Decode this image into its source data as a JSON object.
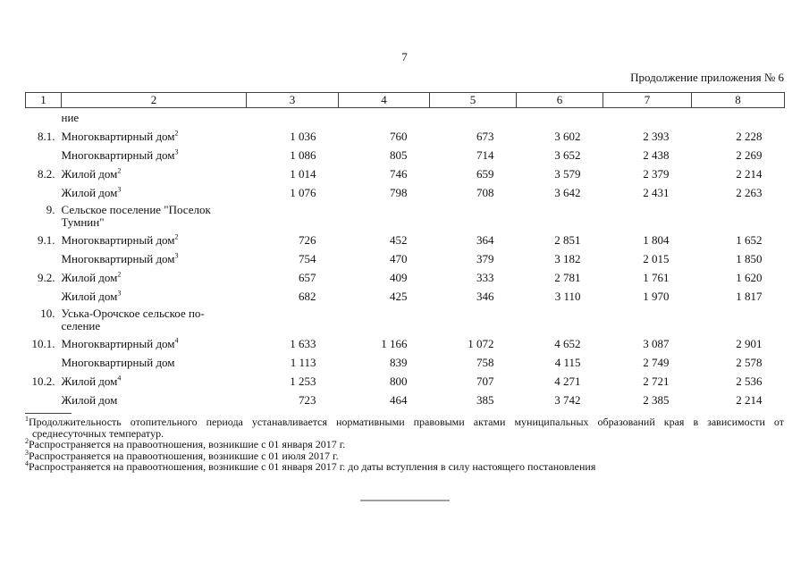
{
  "page": {
    "number": "7",
    "continuation_note": "Продолжение приложения № 6"
  },
  "table": {
    "header_cells": [
      "1",
      "2",
      "3",
      "4",
      "5",
      "6",
      "7",
      "8"
    ],
    "rows": [
      {
        "num": "",
        "label": "ние",
        "type": "continuation",
        "values": [
          "",
          "",
          "",
          "",
          "",
          ""
        ]
      },
      {
        "num": "8.1.",
        "label": "Многоквартирный дом",
        "sup": "2",
        "values": [
          "1 036",
          "760",
          "673",
          "3 602",
          "2 393",
          "2 228"
        ]
      },
      {
        "num": "",
        "label": "Многоквартирный дом",
        "sup": "3",
        "values": [
          "1 086",
          "805",
          "714",
          "3 652",
          "2 438",
          "2 269"
        ]
      },
      {
        "num": "8.2.",
        "label": "Жилой дом",
        "sup": "2",
        "values": [
          "1 014",
          "746",
          "659",
          "3 579",
          "2 379",
          "2 214"
        ]
      },
      {
        "num": "",
        "label": "Жилой дом",
        "sup": "3",
        "values": [
          "1 076",
          "798",
          "708",
          "3 642",
          "2 431",
          "2 263"
        ]
      },
      {
        "num": "9.",
        "label_lines": [
          "Сельское поселение \"Поселок",
          "Тумнин\""
        ],
        "type": "section",
        "values": [
          "",
          "",
          "",
          "",
          "",
          ""
        ]
      },
      {
        "num": "9.1.",
        "label": "Многоквартирный дом",
        "sup": "2",
        "values": [
          "726",
          "452",
          "364",
          "2 851",
          "1 804",
          "1 652"
        ]
      },
      {
        "num": "",
        "label": "Многоквартирный дом",
        "sup": "3",
        "values": [
          "754",
          "470",
          "379",
          "3 182",
          "2 015",
          "1 850"
        ]
      },
      {
        "num": "9.2.",
        "label": "Жилой дом",
        "sup": "2",
        "values": [
          "657",
          "409",
          "333",
          "2 781",
          "1 761",
          "1 620"
        ]
      },
      {
        "num": "",
        "label": "Жилой дом",
        "sup": "3",
        "values": [
          "682",
          "425",
          "346",
          "3 110",
          "1 970",
          "1 817"
        ]
      },
      {
        "num": "10.",
        "label_lines": [
          "Уська-Орочское сельское по-",
          "селение"
        ],
        "type": "section",
        "values": [
          "",
          "",
          "",
          "",
          "",
          ""
        ]
      },
      {
        "num": "10.1.",
        "label": "Многоквартирный дом",
        "sup": "4",
        "values": [
          "1 633",
          "1 166",
          "1 072",
          "4 652",
          "3 087",
          "2 901"
        ]
      },
      {
        "num": "",
        "label": "Многоквартирный дом",
        "values": [
          "1 113",
          "839",
          "758",
          "4 115",
          "2 749",
          "2 578"
        ]
      },
      {
        "num": "10.2.",
        "label": "Жилой дом",
        "sup": "4",
        "values": [
          "1 253",
          "800",
          "707",
          "4 271",
          "2 721",
          "2 536"
        ]
      },
      {
        "num": "",
        "label": "Жилой дом",
        "values": [
          "723",
          "464",
          "385",
          "3 742",
          "2 385",
          "2 214"
        ]
      }
    ]
  },
  "footnotes": [
    {
      "sup": "1",
      "text": "Продолжительность отопительного периода устанавливается нормативными правовыми актами муниципальных образований края в зависимости от среднесуточных температур."
    },
    {
      "sup": "2",
      "text": "Распространяется на правоотношения, возникшие с 01 января 2017 г."
    },
    {
      "sup": "3",
      "text": "Распространяется на правоотношения, возникшие с 01 июля 2017 г."
    },
    {
      "sup": "4",
      "text": "Распространяется на правоотношения, возникшие с 01 января 2017 г. до даты вступления в силу настоящего постановления"
    }
  ]
}
